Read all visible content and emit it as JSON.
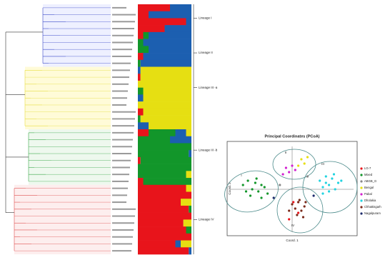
{
  "chart_data": [
    {
      "type": "structure",
      "lineages": [
        "Lineage I",
        "Lineage II",
        "Lineage III -a",
        "Lineage III -b",
        "Lineage IV"
      ],
      "series": [
        {
          "color": "#e8141b",
          "values": [
            0.6,
            0.2,
            0.9,
            0.5,
            0.1,
            0,
            0,
            0.1,
            0,
            0,
            0.05,
            0,
            0,
            0,
            0,
            0.1,
            0,
            0,
            0.2,
            0,
            0,
            0,
            0.05,
            0,
            0,
            0.1,
            0.9,
            1,
            0.8,
            0.95,
            1,
            0.85,
            0.9,
            1,
            0.7,
            0.95
          ]
        },
        {
          "color": "#12962a",
          "values": [
            0,
            0,
            0,
            0,
            0.1,
            0.1,
            0.2,
            0,
            0.05,
            0,
            0,
            0,
            0.1,
            0,
            0,
            0,
            0.05,
            0,
            0.5,
            0.6,
            1,
            0.95,
            0.95,
            1,
            0.9,
            0.9,
            0,
            0,
            0,
            0.05,
            0,
            0,
            0.1,
            0,
            0,
            0
          ]
        },
        {
          "color": "#1c5fb0",
          "values": [
            0.4,
            0.8,
            0.1,
            0.5,
            0.8,
            0.9,
            0.8,
            0.9,
            0.95,
            0.05,
            0,
            0,
            0,
            0.1,
            0,
            0,
            0,
            0.2,
            0.2,
            0.4,
            0,
            0.05,
            0,
            0,
            0,
            0,
            0,
            0,
            0,
            0,
            0,
            0,
            0,
            0,
            0.1,
            0.05
          ]
        },
        {
          "color": "#e6df12",
          "values": [
            0,
            0,
            0,
            0,
            0,
            0,
            0,
            0,
            0,
            0.95,
            0.95,
            1,
            0.9,
            0.9,
            1,
            0.9,
            0.95,
            0.8,
            0.1,
            0,
            0,
            0,
            0,
            0,
            0.1,
            0,
            0.1,
            0,
            0.2,
            0,
            0,
            0.15,
            0,
            0,
            0.2,
            0
          ]
        }
      ]
    },
    {
      "type": "scatter",
      "title": "Principal Coordinates (PCoA)",
      "x_label": "Coord. 1",
      "y_label": "Coord. 2",
      "xlim": [
        -1,
        1
      ],
      "ylim": [
        -1,
        1
      ],
      "cluster_labels": [
        "I",
        "II",
        "III",
        "IV"
      ],
      "series": [
        {
          "name": "LG-7",
          "color": "#e8141b",
          "x": [
            0.02,
            0.1,
            -0.05
          ],
          "y": [
            -0.3,
            -0.55,
            -0.7
          ]
        },
        {
          "name": "Mixed",
          "color": "#12962a",
          "x": [
            -0.8,
            -0.72,
            -0.65,
            -0.6,
            -0.55,
            -0.5,
            -0.45,
            -0.68,
            -0.58,
            -0.4,
            -0.75,
            -0.5
          ],
          "y": [
            0.1,
            0.2,
            0.0,
            0.15,
            -0.05,
            0.1,
            0.05,
            -0.15,
            0.25,
            -0.1,
            -0.05,
            -0.2
          ]
        },
        {
          "name": "ABGB_G",
          "color": "#888888",
          "x": [
            -0.2,
            0.25
          ],
          "y": [
            0.1,
            0.3
          ]
        },
        {
          "name": "Bengal",
          "color": "#e6df12",
          "x": [
            0.15,
            0.2,
            0.1,
            0.25
          ],
          "y": [
            0.7,
            0.6,
            0.55,
            0.75
          ]
        },
        {
          "name": "Pabal",
          "color": "#d21fd0",
          "x": [
            -0.1,
            -0.05,
            0.0,
            0.05,
            -0.15
          ],
          "y": [
            0.5,
            0.4,
            0.55,
            0.45,
            0.35
          ]
        },
        {
          "name": "Dholakia",
          "color": "#22d3e0",
          "x": [
            0.45,
            0.5,
            0.55,
            0.6,
            0.65,
            0.7,
            0.75,
            0.5,
            0.6,
            0.68,
            0.55,
            0.8
          ],
          "y": [
            0.2,
            0.05,
            0.3,
            0.1,
            0.25,
            0.0,
            0.15,
            -0.1,
            -0.05,
            0.35,
            0.15,
            0.2
          ]
        },
        {
          "name": "Chhattisgarh",
          "color": "#7a2a1a",
          "x": [
            0.0,
            0.05,
            0.1,
            0.15,
            0.2,
            0.08,
            0.12,
            0.18,
            -0.05,
            0.22
          ],
          "y": [
            -0.35,
            -0.45,
            -0.3,
            -0.5,
            -0.4,
            -0.6,
            -0.25,
            -0.65,
            -0.5,
            -0.3
          ]
        },
        {
          "name": "Nagalpuram",
          "color": "#1c2a6b",
          "x": [
            -0.3,
            0.35
          ],
          "y": [
            -0.2,
            -0.15
          ]
        }
      ]
    }
  ]
}
